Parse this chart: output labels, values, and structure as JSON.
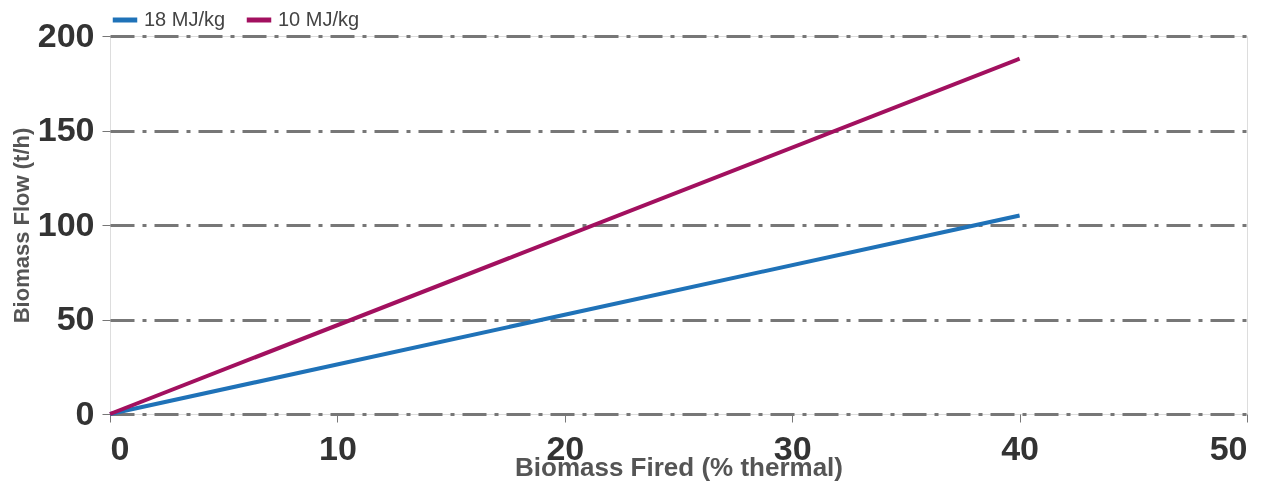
{
  "chart_data": {
    "type": "line",
    "xlabel": "Biomass Fired (% thermal)",
    "ylabel": "Biomass Flow (t/h)",
    "x": [
      0,
      40
    ],
    "series": [
      {
        "name": "18 MJ/kg",
        "color": "#1f72b8",
        "values": [
          0,
          105
        ]
      },
      {
        "name": "10 MJ/kg",
        "color": "#a2105f",
        "values": [
          0,
          188
        ]
      }
    ],
    "xlim": [
      0,
      50
    ],
    "xticks": [
      0,
      10,
      20,
      30,
      40,
      50
    ],
    "ylim": [
      0,
      200
    ],
    "yticks": [
      0,
      50,
      100,
      150,
      200
    ],
    "grid": "y",
    "legend": "top",
    "marker": "none",
    "line_style": "solid"
  }
}
